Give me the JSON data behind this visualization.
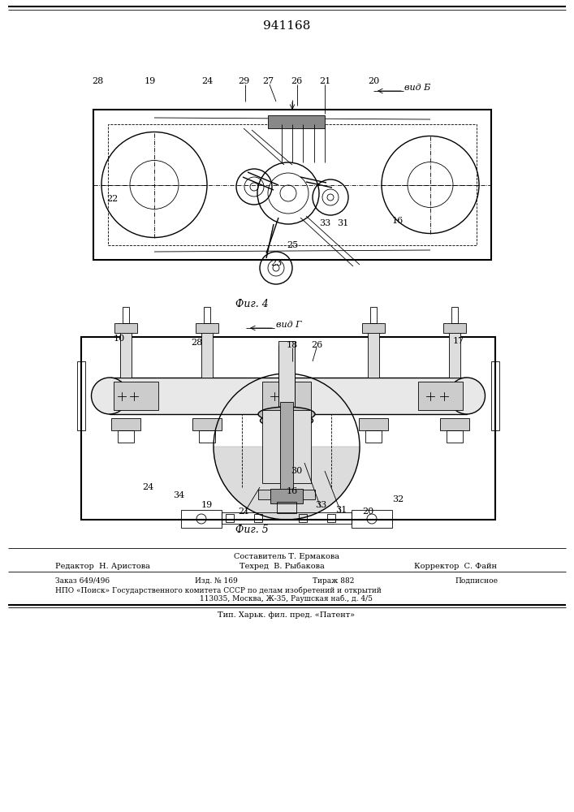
{
  "patent_number": "941168",
  "background_color": "#ffffff",
  "line_color": "#000000",
  "fig_width": 7.07,
  "fig_height": 10.0,
  "dpi": 100,
  "footer": {
    "sostavitel": "Составитель Т. Ермакова",
    "redaktor": "Редактор  Н. Аристова",
    "tehred": "Техред  В. Рыбакова",
    "korrektor": "Корректор  С. Файн",
    "zakaz": "Заказ 649/496",
    "izd": "Изд. № 169",
    "tirazh": "Тираж 882",
    "podpisnoe": "Подписное",
    "npo": "НПО «Поиск» Государственного комитета СССР по делам изобретений и открытий",
    "address": "113035, Москва, Ж-35, Раушская наб., д. 4/5",
    "tip": "Тип. Харьк. фил. пред. «Патент»"
  }
}
